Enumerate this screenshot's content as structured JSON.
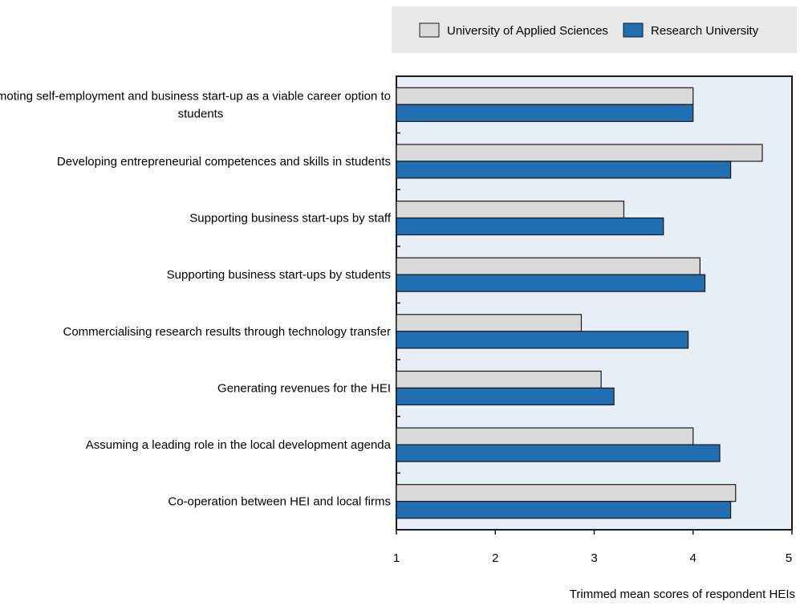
{
  "chart_data": {
    "type": "bar",
    "orientation": "horizontal",
    "categories": [
      "Promoting self-employment and business start-up as a viable career option to students",
      "Developing entrepreneurial competences and skills in students",
      "Supporting business start-ups by staff",
      "Supporting business start-ups by students",
      "Commercialising research results through technology transfer",
      "Generating revenues for the HEI",
      "Assuming a leading role in the local development agenda",
      "Co-operation between HEI and local firms"
    ],
    "category_lines": [
      [
        "Promoting self-employment and business start-up as a viable career option to",
        "students"
      ],
      [
        "Developing entrepreneurial competences and skills in students"
      ],
      [
        "Supporting business start-ups by staff"
      ],
      [
        "Supporting business start-ups by students"
      ],
      [
        "Commercialising research results through technology transfer"
      ],
      [
        "Generating revenues for the HEI"
      ],
      [
        "Assuming a leading role in the local development agenda"
      ],
      [
        "Co-operation between HEI and local firms"
      ]
    ],
    "series": [
      {
        "name": "University of Applied Sciences",
        "color": "#d9d9d9",
        "values": [
          4.0,
          4.7,
          3.3,
          4.07,
          2.87,
          3.07,
          4.0,
          4.43
        ]
      },
      {
        "name": "Research University",
        "color": "#1f6fb2",
        "values": [
          4.0,
          4.38,
          3.7,
          4.12,
          3.95,
          3.2,
          4.27,
          4.38
        ]
      }
    ],
    "xlim": [
      1,
      5
    ],
    "xticks": [
      "1",
      "2",
      "3",
      "4",
      "5"
    ],
    "xlabel": "Trimmed mean scores of respondent HEIs",
    "legend_position": "top-right",
    "plot_background": "#e8eef6"
  }
}
